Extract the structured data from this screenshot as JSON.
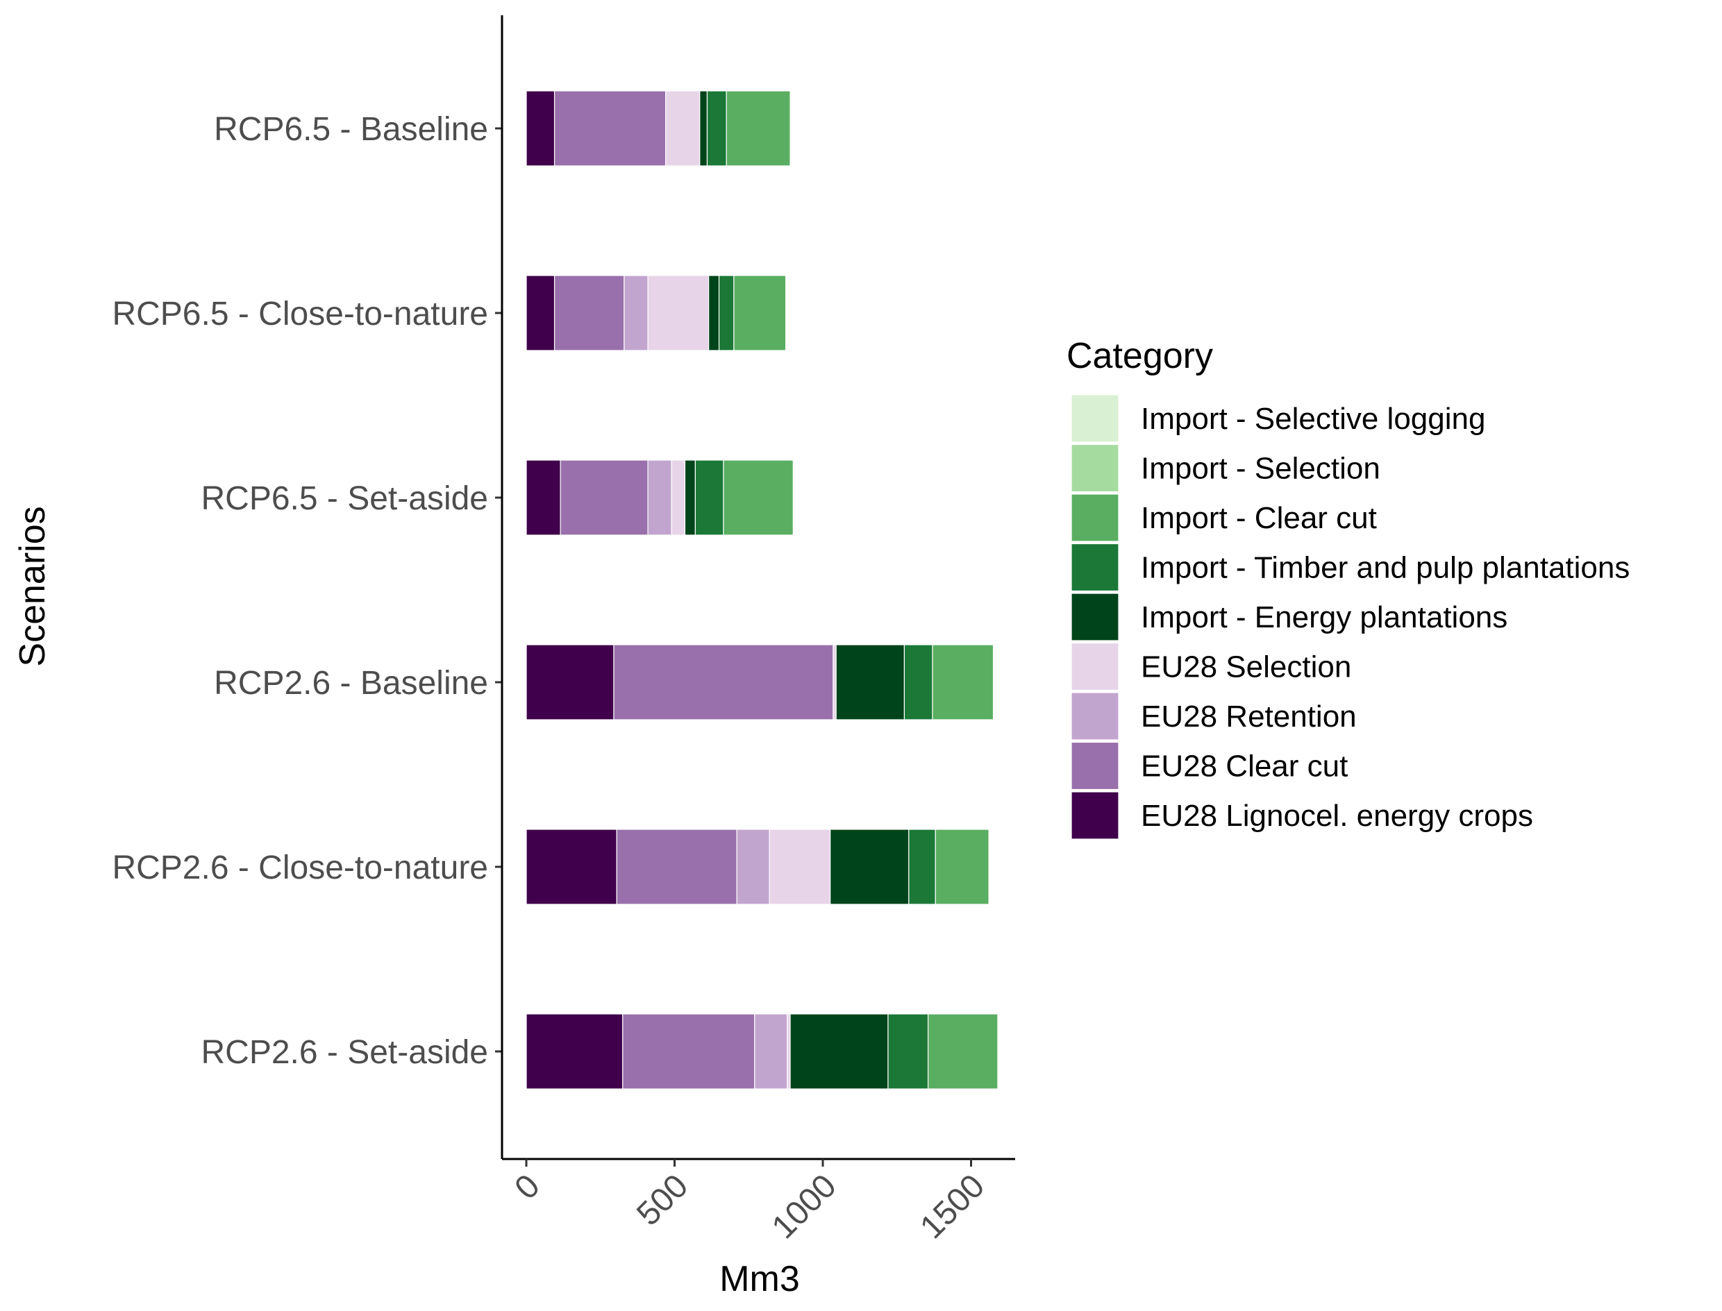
{
  "chart_data": {
    "type": "bar",
    "orientation": "horizontal",
    "stacked": true,
    "title": "",
    "xlabel": "Mm3",
    "ylabel": "Scenarios",
    "xlim": [
      -80,
      1650
    ],
    "xticks": [
      0,
      500,
      1000,
      1500
    ],
    "categories": [
      "RCP6.5 - Baseline",
      "RCP6.5 - Close-to-nature",
      "RCP6.5 - Set-aside",
      "RCP2.6 - Baseline",
      "RCP2.6 - Close-to-nature",
      "RCP2.6 - Set-aside"
    ],
    "legend": {
      "title": "Category",
      "position": "right"
    },
    "series": [
      {
        "name": "EU28 Lignocel. energy crops",
        "color": "#40004b",
        "values": [
          95,
          95,
          115,
          295,
          305,
          325
        ]
      },
      {
        "name": "EU28 Clear cut",
        "color": "#9970ab",
        "values": [
          375,
          235,
          295,
          740,
          405,
          445
        ]
      },
      {
        "name": "EU28 Retention",
        "color": "#c2a5cf",
        "values": [
          0,
          80,
          80,
          0,
          110,
          110
        ]
      },
      {
        "name": "EU28 Selection",
        "color": "#e7d4e8",
        "values": [
          115,
          205,
          45,
          10,
          205,
          10
        ]
      },
      {
        "name": "Import - Energy plantations",
        "color": "#00441b",
        "values": [
          25,
          35,
          35,
          230,
          265,
          330
        ]
      },
      {
        "name": "Import - Timber and pulp plantations",
        "color": "#1b7837",
        "values": [
          65,
          50,
          95,
          95,
          90,
          135
        ]
      },
      {
        "name": "Import - Clear cut",
        "color": "#5aae61",
        "values": [
          215,
          175,
          235,
          205,
          180,
          235
        ]
      },
      {
        "name": "Import - Selection",
        "color": "#a6dba0",
        "values": [
          0,
          0,
          0,
          0,
          0,
          0
        ]
      },
      {
        "name": "Import - Selective logging",
        "color": "#d9f0d3",
        "values": [
          0,
          0,
          0,
          0,
          0,
          0
        ]
      }
    ]
  }
}
